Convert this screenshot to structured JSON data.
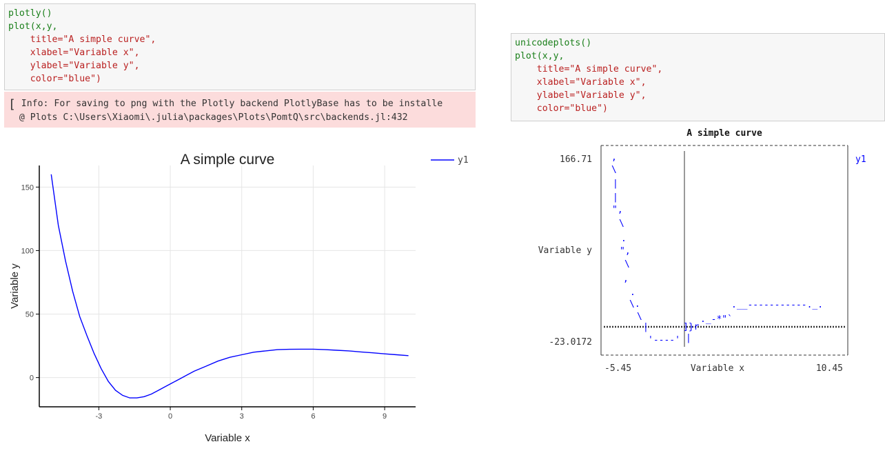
{
  "left_cell": {
    "code_lines": [
      "plotly()",
      "plot(x,y,",
      "    title=\"A simple curve\",",
      "    xlabel=\"Variable x\",",
      "    ylabel=\"Variable y\",",
      "    color=\"blue\")"
    ]
  },
  "info": {
    "line1": "Info: For saving to png with the Plotly backend PlotlyBase has to be installe",
    "line2": "@ Plots C:\\Users\\Xiaomi\\.julia\\packages\\Plots\\PomtQ\\src\\backends.jl:432"
  },
  "right_cell": {
    "code_lines": [
      "unicodeplots()",
      "plot(x,y,",
      "    title=\"A simple curve\",",
      "    xlabel=\"Variable x\",",
      "    ylabel=\"Variable y\",",
      "    color=\"blue\")"
    ]
  },
  "colors": {
    "series": "#0000ff",
    "grid": "#e5e5e5",
    "axis": "#000000"
  },
  "chart_data": [
    {
      "type": "line",
      "title": "A simple curve",
      "xlabel": "Variable x",
      "ylabel": "Variable y",
      "xlim": [
        -5.5,
        10.3
      ],
      "ylim": [
        -23,
        167
      ],
      "xticks": [
        -3,
        0,
        3,
        6,
        9
      ],
      "yticks": [
        0,
        50,
        100,
        150
      ],
      "grid": true,
      "legend_position": "top-right",
      "series": [
        {
          "name": "y1",
          "x": [
            -5,
            -4.7,
            -4.4,
            -4.1,
            -3.8,
            -3.5,
            -3.2,
            -2.9,
            -2.6,
            -2.3,
            -2,
            -1.7,
            -1.4,
            -1.1,
            -0.8,
            -0.5,
            -0.2,
            0.1,
            0.4,
            0.7,
            1,
            1.5,
            2,
            2.5,
            3,
            3.5,
            4,
            4.5,
            5,
            5.5,
            6,
            6.5,
            7,
            7.5,
            8,
            8.5,
            9,
            9.5,
            10
          ],
          "y": [
            160,
            120,
            92,
            68,
            48,
            33,
            19,
            7,
            -3,
            -10,
            -14,
            -16,
            -16,
            -15,
            -13,
            -10,
            -7,
            -4,
            -1,
            2,
            5,
            9,
            13,
            16,
            18,
            20,
            21,
            22,
            22.3,
            22.4,
            22.4,
            22,
            21.5,
            21,
            20.2,
            19.5,
            18.7,
            18,
            17.3
          ]
        }
      ]
    },
    {
      "type": "line",
      "title": "A simple curve",
      "xlabel": "Variable x",
      "ylabel": "Variable y",
      "ytick_top": "166.71",
      "ytick_bottom": "-23.0172",
      "xtick_left": "-5.45",
      "xtick_right": "10.45",
      "legend": "y1",
      "legend_position": "right",
      "series": [
        {
          "name": "y1"
        }
      ]
    }
  ]
}
